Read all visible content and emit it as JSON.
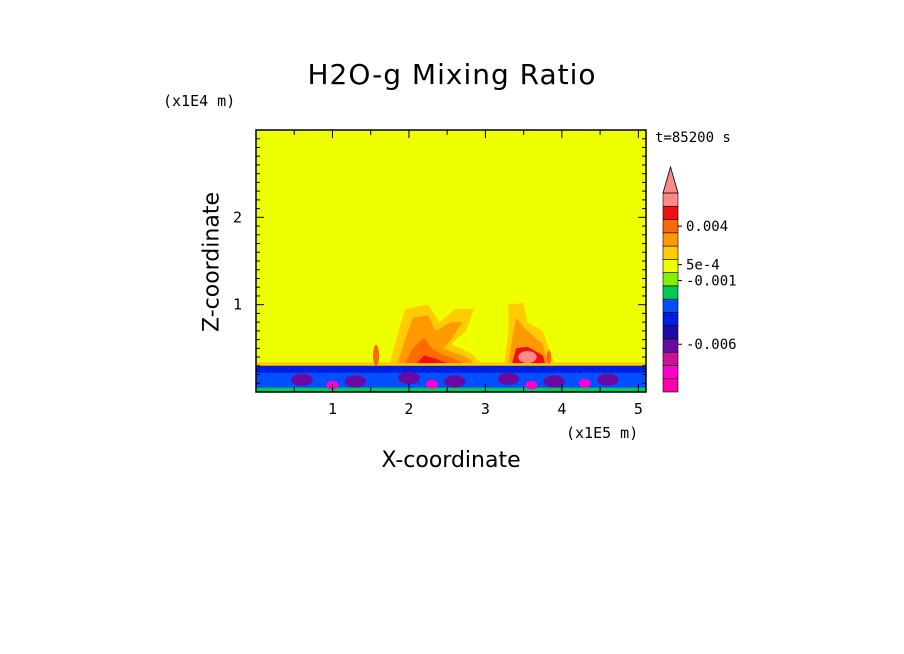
{
  "chart_data": {
    "type": "heatmap",
    "title": "H2O-g Mixing Ratio",
    "xlabel": "X-coordinate",
    "ylabel": "Z-coordinate",
    "x_units": "(x1E5 m)",
    "z_units": "(x1E4 m)",
    "time_label": "t=85200 s",
    "xlim": [
      0,
      5.1
    ],
    "zlim": [
      0,
      3.0
    ],
    "x_ticks": [
      1,
      2,
      3,
      4,
      5
    ],
    "z_ticks": [
      1,
      2
    ],
    "background_color": "#eeff00",
    "colorbar": {
      "extend_max": true,
      "levels": [
        {
          "color": "#ff00aa"
        },
        {
          "color": "#ff00cc"
        },
        {
          "color": "#cc1199"
        },
        {
          "color": "#6a0aa0"
        },
        {
          "color": "#1a0aa8"
        },
        {
          "color": "#001ee0"
        },
        {
          "color": "#0050ff"
        },
        {
          "color": "#00cc55"
        },
        {
          "color": "#88ee00"
        },
        {
          "color": "#eeff00"
        },
        {
          "color": "#ffcc00"
        },
        {
          "color": "#ff9900"
        },
        {
          "color": "#ff6a00"
        },
        {
          "color": "#ee1111"
        },
        {
          "color": "#ff8888"
        }
      ],
      "tick_labels": [
        {
          "text": "0.004",
          "at_level": 12.5
        },
        {
          "text": "5e-4",
          "at_level": 9.6
        },
        {
          "text": "-0.001",
          "at_level": 8.4
        },
        {
          "text": "-0.006",
          "at_level": 3.6
        }
      ]
    }
  }
}
